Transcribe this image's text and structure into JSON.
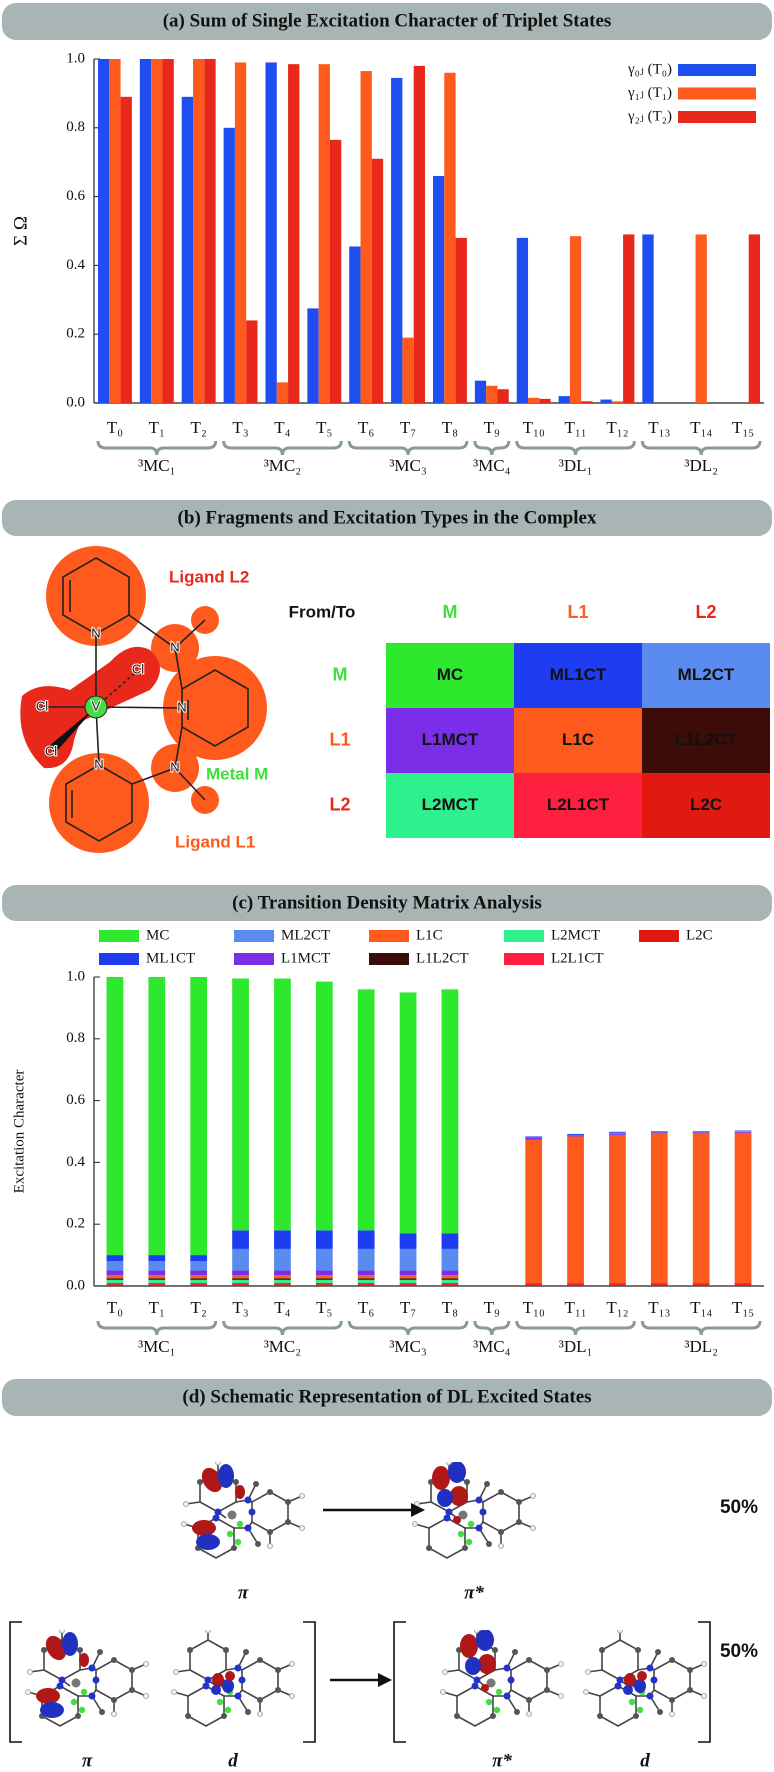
{
  "chart_data": [
    {
      "type": "bar",
      "title": "(a) Sum of Single Excitation Character of Triplet States",
      "y_label": "Σ Ω",
      "categories": [
        "T₀",
        "T₁",
        "T₂",
        "T₃",
        "T₄",
        "T₅",
        "T₆",
        "T₇",
        "T₈",
        "T₉",
        "T₁₀",
        "T₁₁",
        "T₁₂",
        "T₁₃",
        "T₁₄",
        "T₁₅"
      ],
      "groups": [
        {
          "label": "³MC₁",
          "members": [
            "T₀",
            "T₁",
            "T₂"
          ]
        },
        {
          "label": "³MC₂",
          "members": [
            "T₃",
            "T₄",
            "T₅"
          ]
        },
        {
          "label": "³MC₃",
          "members": [
            "T₆",
            "T₇",
            "T₈"
          ]
        },
        {
          "label": "³MC₄",
          "members": [
            "T₉"
          ]
        },
        {
          "label": "³DL₁",
          "members": [
            "T₁₀",
            "T₁₁",
            "T₁₂"
          ]
        },
        {
          "label": "³DL₂",
          "members": [
            "T₁₃",
            "T₁₄",
            "T₁₅"
          ]
        }
      ],
      "series": [
        {
          "name": "γ₀ⱼ (T₀)",
          "color": "#1e4ef0",
          "values": [
            1.0,
            1.0,
            0.89,
            0.8,
            0.99,
            0.275,
            0.455,
            0.945,
            0.66,
            0.065,
            0.48,
            0.02,
            0.01,
            0.49,
            0,
            0
          ]
        },
        {
          "name": "γ₁ⱼ (T₁)",
          "color": "#ff5a1e",
          "values": [
            1.0,
            1.0,
            1.0,
            0.99,
            0.06,
            0.985,
            0.965,
            0.19,
            0.96,
            0.05,
            0.015,
            0.485,
            0.005,
            0,
            0.49,
            0
          ]
        },
        {
          "name": "γ₂ⱼ (T₂)",
          "color": "#e8281a",
          "values": [
            0.89,
            1.0,
            1.0,
            0.24,
            0.985,
            0.765,
            0.71,
            0.98,
            0.48,
            0.04,
            0.012,
            0.005,
            0.49,
            0,
            0,
            0.49
          ]
        }
      ],
      "ylim": [
        0,
        1.0
      ],
      "yticks": [
        {
          "value": 0,
          "label": "0.0"
        },
        0.2,
        0.4,
        0.6,
        0.8,
        {
          "value": 1,
          "label": "1.0"
        }
      ],
      "legend": "upper right"
    },
    {
      "type": "stacked_bar",
      "title": "(c) Transition Density Matrix Analysis",
      "y_label": "Excitation Character",
      "categories": [
        "T₀",
        "T₁",
        "T₂",
        "T₃",
        "T₄",
        "T₅",
        "T₆",
        "T₇",
        "T₈",
        "T₉",
        "T₁₀",
        "T₁₁",
        "T₁₂",
        "T₁₃",
        "T₁₄",
        "T₁₅"
      ],
      "groups": [
        {
          "label": "³MC₁",
          "members": [
            "T₀",
            "T₁",
            "T₂"
          ]
        },
        {
          "label": "³MC₂",
          "members": [
            "T₃",
            "T₄",
            "T₅"
          ]
        },
        {
          "label": "³MC₃",
          "members": [
            "T₆",
            "T₇",
            "T₈"
          ]
        },
        {
          "label": "³MC₄",
          "members": [
            "T₉"
          ]
        },
        {
          "label": "³DL₁",
          "members": [
            "T₁₀",
            "T₁₁",
            "T₁₂"
          ]
        },
        {
          "label": "³DL₂",
          "members": [
            "T₁₃",
            "T₁₄",
            "T₁₅"
          ]
        }
      ],
      "series": [
        {
          "name": "MC",
          "color": "#2ee82e",
          "values": [
            0.9,
            0.9,
            0.9,
            0.815,
            0.815,
            0.805,
            0.78,
            0.78,
            0.79,
            0,
            0,
            0,
            0,
            0,
            0,
            0
          ]
        },
        {
          "name": "ML1CT",
          "color": "#1e3cf0",
          "values": [
            0.02,
            0.02,
            0.02,
            0.06,
            0.06,
            0.06,
            0.06,
            0.05,
            0.05,
            0,
            0.003,
            0.003,
            0.003,
            0.002,
            0.002,
            0.002
          ]
        },
        {
          "name": "ML2CT",
          "color": "#5a8cf0",
          "values": [
            0.03,
            0.03,
            0.03,
            0.07,
            0.07,
            0.07,
            0.07,
            0.07,
            0.07,
            0,
            0.002,
            0.002,
            0.004,
            0.002,
            0.002,
            0.002
          ]
        },
        {
          "name": "L1MCT",
          "color": "#7a2ee8",
          "values": [
            0.015,
            0.015,
            0.015,
            0.015,
            0.015,
            0.015,
            0.015,
            0.015,
            0.015,
            0,
            0.005,
            0.003,
            0.003,
            0.003,
            0.003,
            0.003
          ]
        },
        {
          "name": "L1C",
          "color": "#ff5a1e",
          "values": [
            0.01,
            0.01,
            0.01,
            0.01,
            0.01,
            0.01,
            0.01,
            0.01,
            0.01,
            0,
            0.465,
            0.475,
            0.48,
            0.485,
            0.485,
            0.487
          ]
        },
        {
          "name": "L1L2CT",
          "color": "#3c0c08",
          "values": [
            0.005,
            0.005,
            0.005,
            0.005,
            0.005,
            0.005,
            0.005,
            0.005,
            0.005,
            0,
            0.002,
            0.002,
            0.002,
            0.002,
            0.002,
            0.002
          ]
        },
        {
          "name": "L2MCT",
          "color": "#2ef08c",
          "values": [
            0.01,
            0.01,
            0.01,
            0.01,
            0.01,
            0.01,
            0.01,
            0.01,
            0.01,
            0,
            0,
            0,
            0,
            0,
            0,
            0
          ]
        },
        {
          "name": "L2L1CT",
          "color": "#ff2040",
          "values": [
            0.005,
            0.005,
            0.005,
            0.005,
            0.005,
            0.005,
            0.005,
            0.005,
            0.005,
            0,
            0.002,
            0.002,
            0.002,
            0.002,
            0.002,
            0.002
          ]
        },
        {
          "name": "L2C",
          "color": "#e01a10",
          "values": [
            0.005,
            0.005,
            0.005,
            0.005,
            0.005,
            0.005,
            0.005,
            0.005,
            0.005,
            0,
            0.005,
            0.005,
            0.005,
            0.005,
            0.005,
            0.005
          ]
        }
      ],
      "ylim": [
        0,
        1.0
      ],
      "yticks": [
        {
          "value": 0,
          "label": "0.0"
        },
        0.2,
        0.4,
        0.6,
        0.8,
        {
          "value": 1,
          "label": "1.0"
        }
      ],
      "legend": "above"
    }
  ],
  "fragments": {
    "title": "(b) Fragments and Excitation Types in the Complex",
    "molecule_labels": [
      "Ligand L2",
      "Metal M",
      "Ligand L1"
    ],
    "atoms": [
      "N",
      "N",
      "N",
      "N",
      "N",
      "Cl",
      "Cl",
      "Cl",
      "V"
    ],
    "table": {
      "corner": "From/To",
      "columns": [
        "M",
        "L1",
        "L2"
      ],
      "rows": [
        {
          "header": "M",
          "cells": [
            "MC",
            "ML1CT",
            "ML2CT"
          ]
        },
        {
          "header": "L1",
          "cells": [
            "L1MCT",
            "L1C",
            "L1L2CT"
          ]
        },
        {
          "header": "L2",
          "cells": [
            "L2MCT",
            "L2L1CT",
            "L2C"
          ]
        }
      ],
      "header_colors": [
        "#3ee03e",
        "#ff5a1e",
        "#e8281a"
      ],
      "cell_colors": [
        [
          "#2ee82e",
          "#1e3cf0",
          "#5a8cf0"
        ],
        [
          "#7a2ee8",
          "#ff5a1e",
          "#3c0c08"
        ],
        [
          "#2ef08c",
          "#ff2040",
          "#e01a10"
        ]
      ]
    }
  },
  "schematic": {
    "title": "(d) Schematic Representation of DL Excited States",
    "rows": [
      {
        "from": [
          "π"
        ],
        "to": [
          "π*"
        ],
        "weight": "50%"
      },
      {
        "from": [
          "π",
          "d"
        ],
        "to": [
          "π*",
          "d"
        ],
        "weight": "50%"
      }
    ]
  }
}
